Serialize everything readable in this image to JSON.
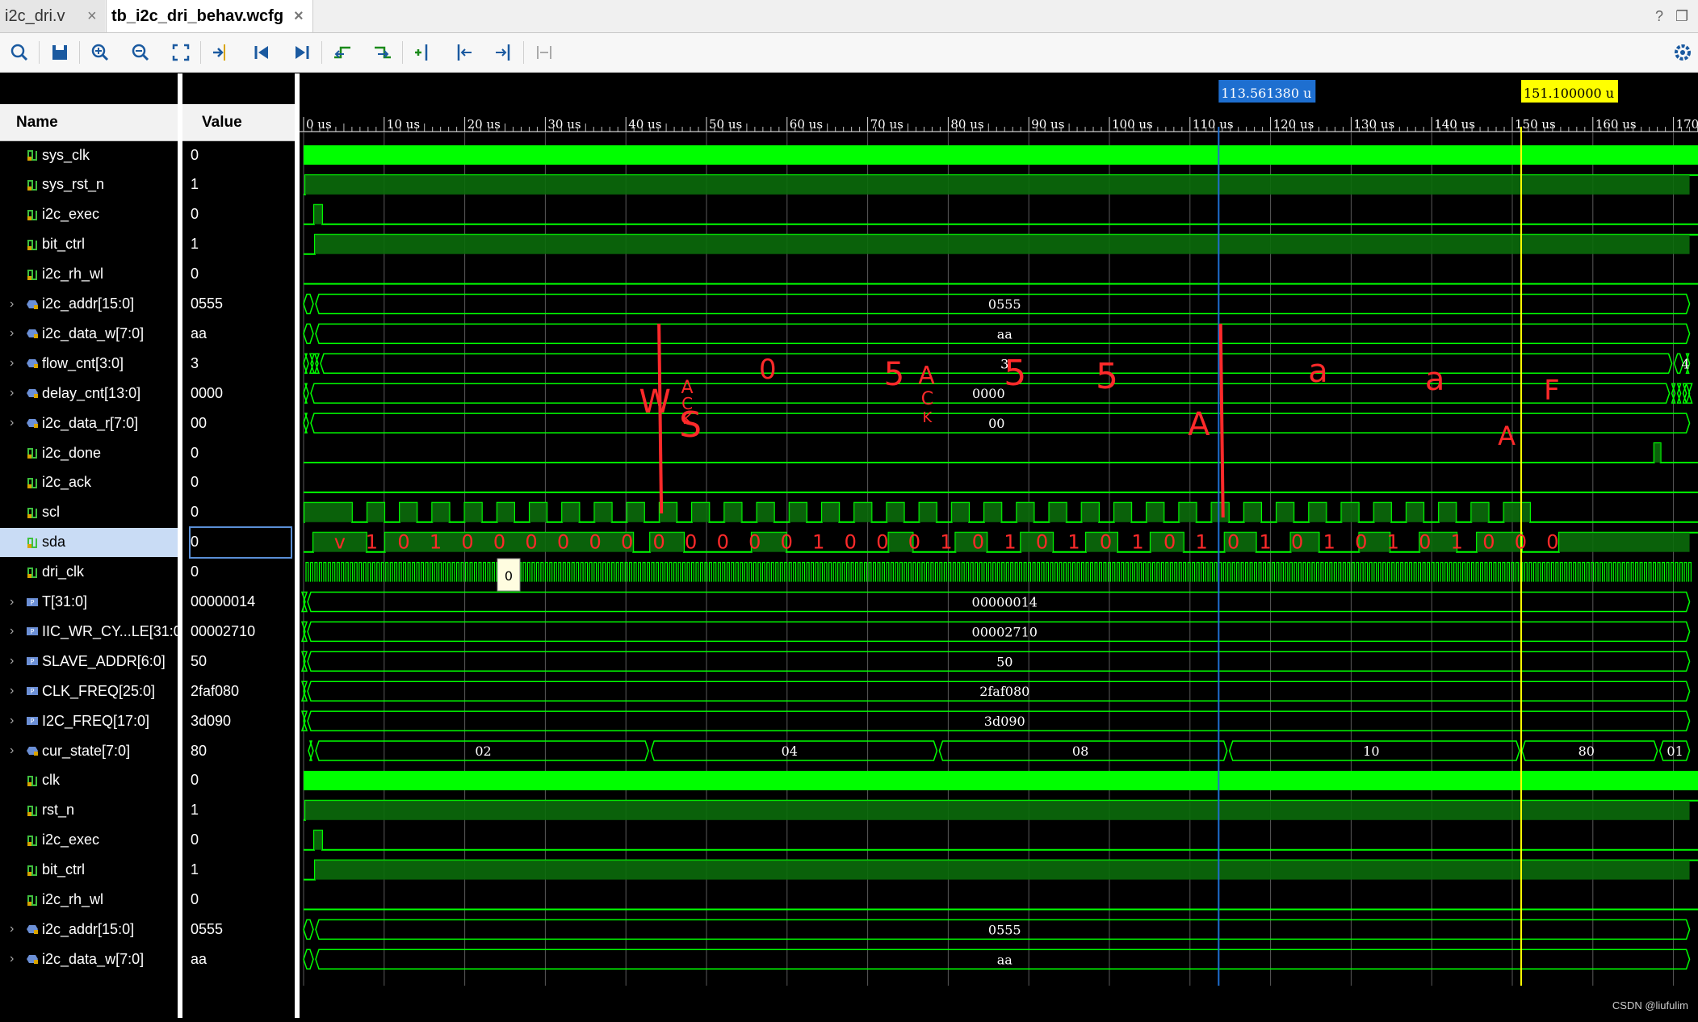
{
  "tabs": [
    {
      "label": "i2c_dri.v"
    },
    {
      "label": "tb_i2c_dri_behav.wcfg"
    }
  ],
  "tab_close": "×",
  "window_controls": {
    "help": "?",
    "restore": "❐"
  },
  "toolbar": [
    {
      "name": "search-icon"
    },
    {
      "name": "save-icon"
    },
    {
      "name": "zoom-in-icon"
    },
    {
      "name": "zoom-out-icon"
    },
    {
      "name": "zoom-fit-icon"
    },
    {
      "name": "go-to-cursor-icon"
    },
    {
      "name": "go-to-time-0-icon"
    },
    {
      "name": "go-to-last-time-icon"
    },
    {
      "name": "previous-transition-icon"
    },
    {
      "name": "next-transition-icon"
    },
    {
      "name": "add-marker-icon"
    },
    {
      "name": "previous-marker-icon"
    },
    {
      "name": "next-marker-icon"
    },
    {
      "name": "swap-cursors-icon"
    }
  ],
  "headers": {
    "name": "Name",
    "value": "Value"
  },
  "signals": [
    {
      "name": "sys_clk",
      "value": "0",
      "kind": "bit",
      "expand": false
    },
    {
      "name": "sys_rst_n",
      "value": "1",
      "kind": "bit",
      "expand": false
    },
    {
      "name": "i2c_exec",
      "value": "0",
      "kind": "bit",
      "expand": false
    },
    {
      "name": "bit_ctrl",
      "value": "1",
      "kind": "bit",
      "expand": false
    },
    {
      "name": "i2c_rh_wl",
      "value": "0",
      "kind": "bit",
      "expand": false
    },
    {
      "name": "i2c_addr[15:0]",
      "value": "0555",
      "kind": "bus",
      "expand": true
    },
    {
      "name": "i2c_data_w[7:0]",
      "value": "aa",
      "kind": "bus",
      "expand": true
    },
    {
      "name": "flow_cnt[3:0]",
      "value": "3",
      "kind": "bus",
      "expand": true
    },
    {
      "name": "delay_cnt[13:0]",
      "value": "0000",
      "kind": "bus",
      "expand": true
    },
    {
      "name": "i2c_data_r[7:0]",
      "value": "00",
      "kind": "bus",
      "expand": true
    },
    {
      "name": "i2c_done",
      "value": "0",
      "kind": "bit",
      "expand": false
    },
    {
      "name": "i2c_ack",
      "value": "0",
      "kind": "bit",
      "expand": false
    },
    {
      "name": "scl",
      "value": "0",
      "kind": "bit",
      "expand": false
    },
    {
      "name": "sda",
      "value": "0",
      "kind": "bit",
      "expand": false,
      "selected": true
    },
    {
      "name": "dri_clk",
      "value": "0",
      "kind": "bit",
      "expand": false
    },
    {
      "name": "T[31:0]",
      "value": "00000014",
      "kind": "param",
      "expand": true
    },
    {
      "name": "IIC_WR_CY...LE[31:0]",
      "value": "00002710",
      "kind": "param",
      "expand": true
    },
    {
      "name": "SLAVE_ADDR[6:0]",
      "value": "50",
      "kind": "param",
      "expand": true
    },
    {
      "name": "CLK_FREQ[25:0]",
      "value": "2faf080",
      "kind": "param",
      "expand": true
    },
    {
      "name": "I2C_FREQ[17:0]",
      "value": "3d090",
      "kind": "param",
      "expand": true
    },
    {
      "name": "cur_state[7:0]",
      "value": "80",
      "kind": "bus",
      "expand": true
    },
    {
      "name": "clk",
      "value": "0",
      "kind": "bit",
      "expand": false
    },
    {
      "name": "rst_n",
      "value": "1",
      "kind": "bit",
      "expand": false
    },
    {
      "name": "i2c_exec",
      "value": "0",
      "kind": "bit",
      "expand": false
    },
    {
      "name": "bit_ctrl",
      "value": "1",
      "kind": "bit",
      "expand": false
    },
    {
      "name": "i2c_rh_wl",
      "value": "0",
      "kind": "bit",
      "expand": false
    },
    {
      "name": "i2c_addr[15:0]",
      "value": "0555",
      "kind": "bus",
      "expand": true
    },
    {
      "name": "i2c_data_w[7:0]",
      "value": "aa",
      "kind": "bus",
      "expand": true
    }
  ],
  "timeline": {
    "unit": "us",
    "range": [
      0,
      172
    ],
    "tick_step": 10,
    "tick_labels": [
      "0 us",
      "10 us",
      "20 us",
      "30 us",
      "40 us",
      "50 us",
      "60 us",
      "70 us",
      "80 us",
      "90 us",
      "100 us",
      "110 us",
      "120 us",
      "130 us",
      "140 us",
      "150 us",
      "160 us",
      "170"
    ]
  },
  "cursors": [
    {
      "label": "113.561380 u",
      "time": 113.56,
      "color": "#1e6fd0",
      "text_color": "#ffffff"
    },
    {
      "label": "151.100000 u",
      "time": 151.1,
      "color": "#ffff00",
      "text_color": "#000000"
    }
  ],
  "bus_values": {
    "i2c_addr": "0555",
    "i2c_data_w": "aa",
    "flow_cnt": "3",
    "flow_cnt_next": "4",
    "delay_cnt": "0000",
    "i2c_data_r": "00",
    "T": "00000014",
    "IIC_WR_CYCLE": "00002710",
    "SLAVE_ADDR": "50",
    "CLK_FREQ": "2faf080",
    "I2C_FREQ": "3d090",
    "cur_state": [
      {
        "v": "02"
      },
      {
        "v": "04"
      },
      {
        "v": "08"
      },
      {
        "v": "10"
      },
      {
        "v": "80"
      },
      {
        "v": "01"
      }
    ],
    "i2c_addr2": "0555",
    "i2c_data_w2": "aa"
  },
  "hover_tooltip": "0",
  "annotations": {
    "S": "S",
    "W": "W",
    "ACK": "A",
    "C": "C",
    "K": "K",
    "n0": "0",
    "n5": "5",
    "n5b": "5",
    "n5c": "5",
    "A1": "A",
    "A2": "A",
    "a1": "a",
    "a2": "a",
    "F": "F",
    "bits": "v 1 0 1 0 0 0 0 0 0 0 0 0 0 0 1 0 0 0 1 0 1 0 1 0 1 0 1 0 1 0 1 0 1 0 1 0 0 0"
  },
  "colors": {
    "wave": "#00ff00",
    "bus_fill": "#0a5a0a",
    "bit_fill": "#0b6b0b",
    "grid": "#5a5a5a",
    "marker_blue": "#1e6fd0",
    "marker_yellow": "#ffff00",
    "annotation": "#ff2a2a"
  },
  "watermark": "CSDN @liufulim"
}
